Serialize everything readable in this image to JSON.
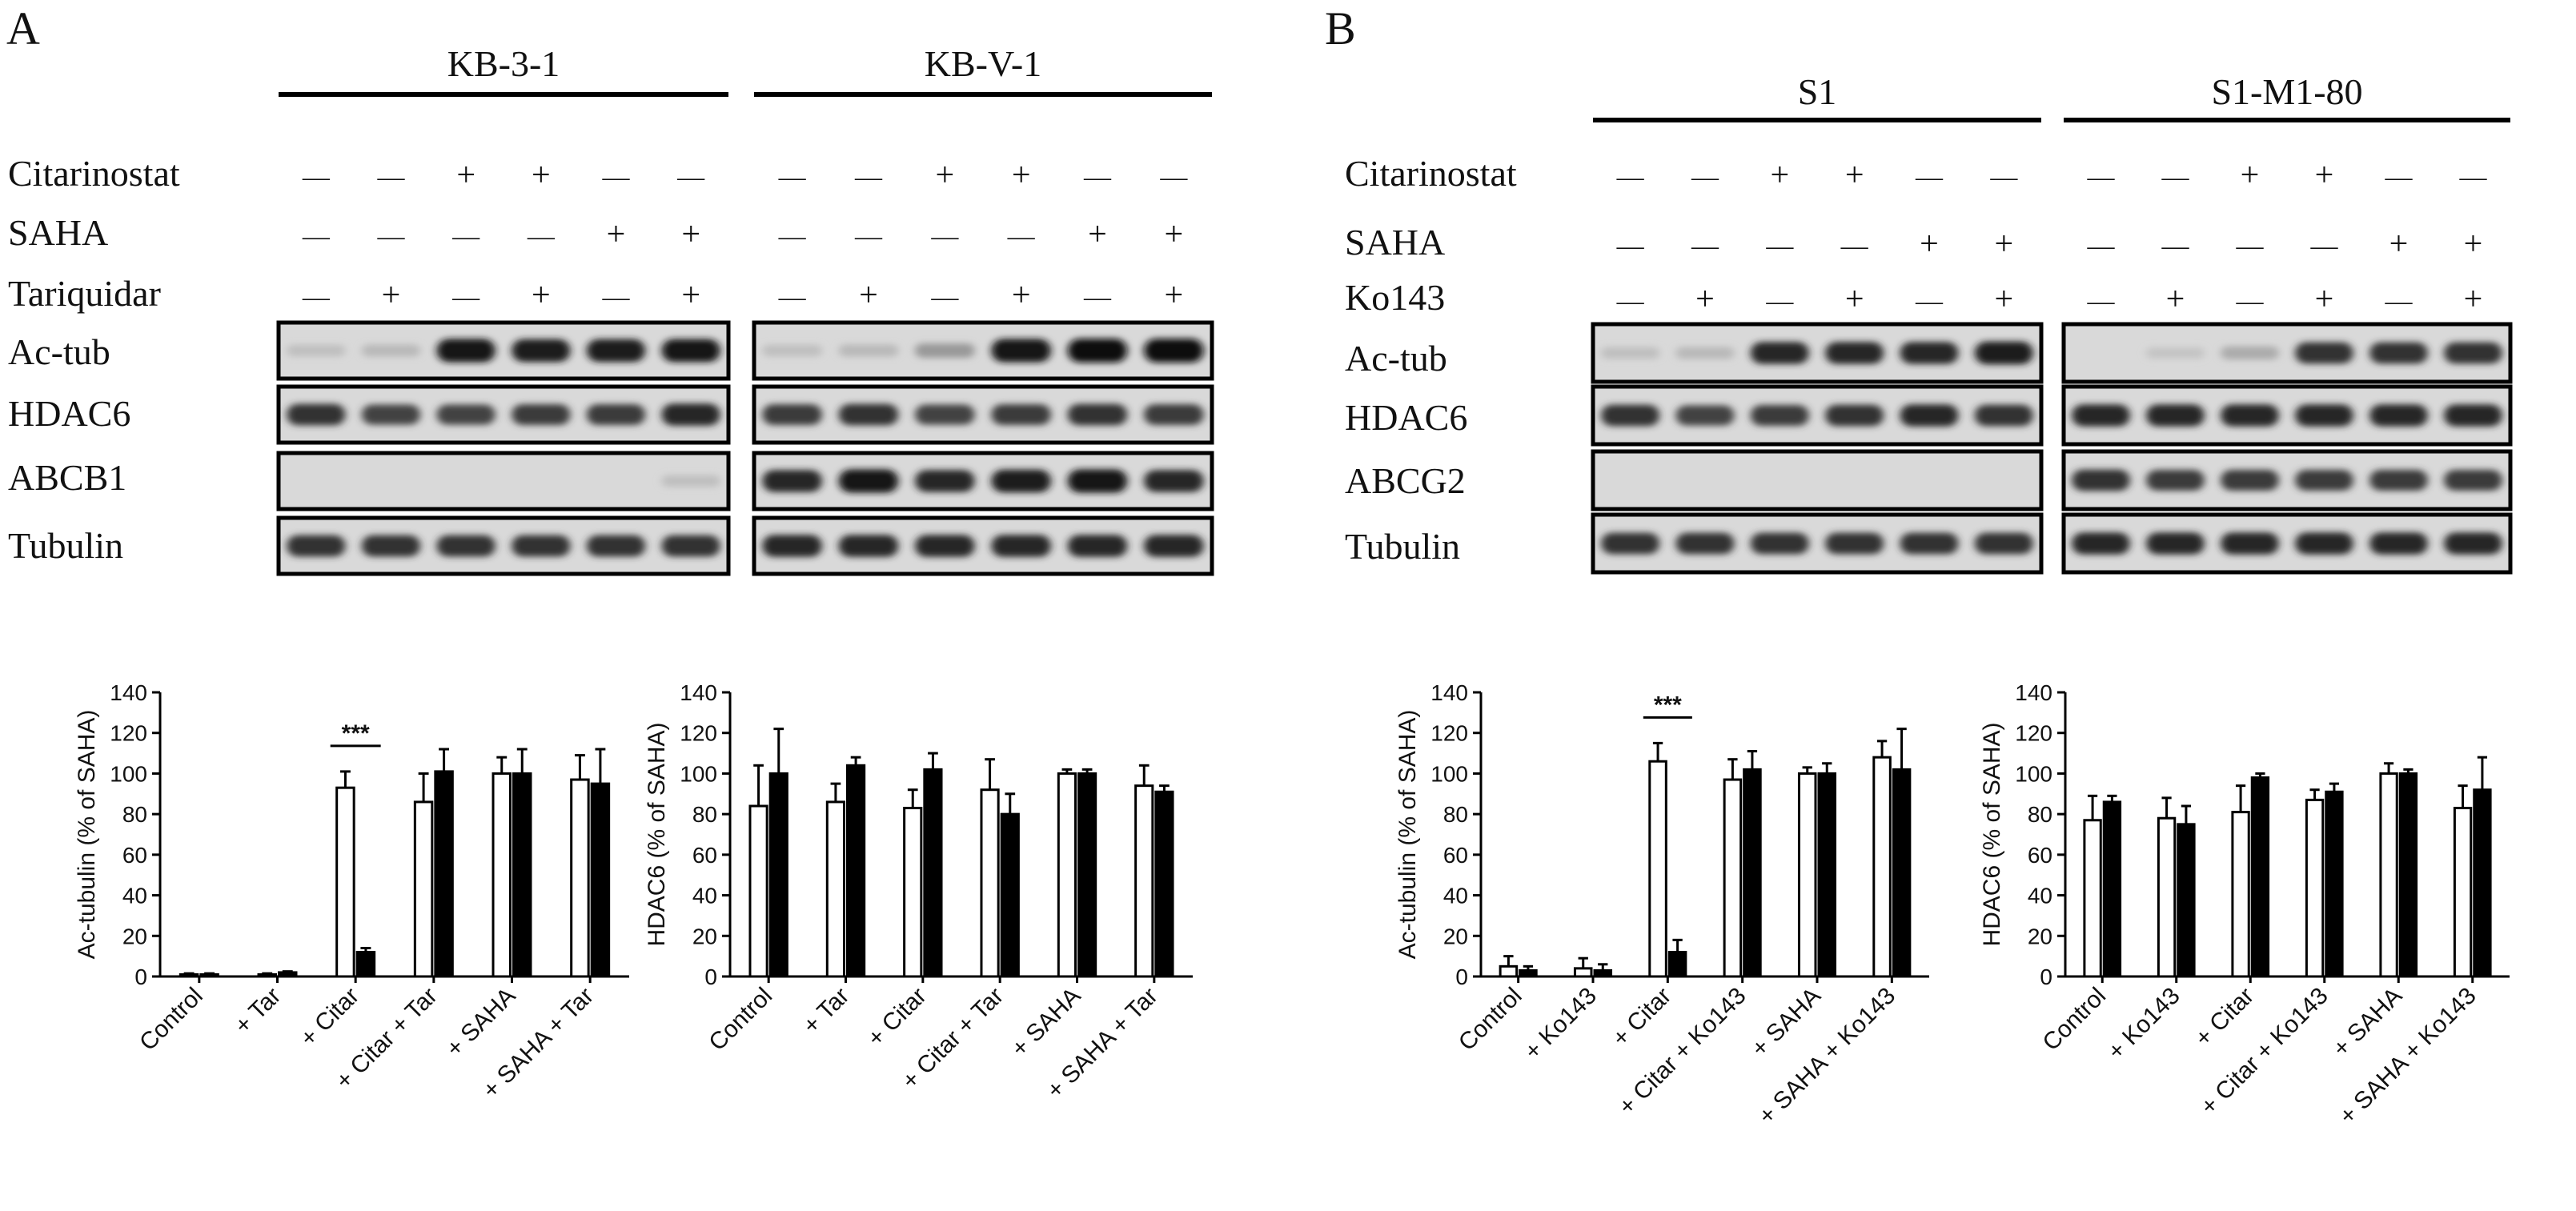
{
  "panels": [
    {
      "letter": "A",
      "cell_lines": [
        "KB-3-1",
        "KB-V-1"
      ],
      "treatment_rows": [
        {
          "label": "Citarinostat",
          "signs": [
            "—",
            "—",
            "+",
            "+",
            "—",
            "—"
          ]
        },
        {
          "label": "SAHA",
          "signs": [
            "—",
            "—",
            "—",
            "—",
            "+",
            "+"
          ]
        },
        {
          "label": "Tariquidar",
          "signs": [
            "—",
            "+",
            "—",
            "+",
            "—",
            "+"
          ]
        }
      ],
      "blot_rows": [
        "Ac-tub",
        "HDAC6",
        "ABCB1",
        "Tubulin"
      ],
      "bands": [
        [
          [
            0.05,
            0.08,
            0.95,
            0.9,
            0.9,
            0.92
          ],
          [
            0.05,
            0.08,
            0.25,
            0.95,
            0.98,
            0.98
          ]
        ],
        [
          [
            0.8,
            0.7,
            0.7,
            0.75,
            0.75,
            0.85
          ],
          [
            0.75,
            0.8,
            0.7,
            0.75,
            0.8,
            0.75
          ]
        ],
        [
          [
            0,
            0,
            0,
            0,
            0,
            0.05
          ],
          [
            0.85,
            0.95,
            0.85,
            0.9,
            0.95,
            0.85
          ]
        ],
        [
          [
            0.8,
            0.8,
            0.8,
            0.8,
            0.8,
            0.8
          ],
          [
            0.85,
            0.85,
            0.85,
            0.85,
            0.85,
            0.85
          ]
        ]
      ]
    },
    {
      "letter": "B",
      "cell_lines": [
        "S1",
        "S1-M1-80"
      ],
      "treatment_rows": [
        {
          "label": "Citarinostat",
          "signs": [
            "—",
            "—",
            "+",
            "+",
            "—",
            "—"
          ]
        },
        {
          "label": "SAHA",
          "signs": [
            "—",
            "—",
            "—",
            "—",
            "+",
            "+"
          ]
        },
        {
          "label": "Ko143",
          "signs": [
            "—",
            "+",
            "—",
            "+",
            "—",
            "+"
          ]
        }
      ],
      "blot_rows": [
        "Ac-tub",
        "HDAC6",
        "ABCG2",
        "Tubulin"
      ],
      "bands": [
        [
          [
            0.05,
            0.08,
            0.85,
            0.85,
            0.85,
            0.9
          ],
          [
            0,
            0.02,
            0.15,
            0.8,
            0.8,
            0.8
          ]
        ],
        [
          [
            0.8,
            0.7,
            0.75,
            0.8,
            0.85,
            0.8
          ],
          [
            0.85,
            0.85,
            0.85,
            0.85,
            0.85,
            0.85
          ]
        ],
        [
          [
            0,
            0,
            0,
            0,
            0,
            0
          ],
          [
            0.8,
            0.75,
            0.75,
            0.75,
            0.75,
            0.75
          ]
        ],
        [
          [
            0.8,
            0.8,
            0.8,
            0.8,
            0.8,
            0.8
          ],
          [
            0.85,
            0.85,
            0.85,
            0.85,
            0.85,
            0.85
          ]
        ]
      ]
    }
  ],
  "chart_data": [
    {
      "type": "bar",
      "ylabel": "Ac-tubulin (% of SAHA)",
      "ylim": [
        0,
        140
      ],
      "yticks": [
        0,
        20,
        40,
        60,
        80,
        100,
        120,
        140
      ],
      "categories": [
        "Control",
        "+ Tar",
        "+ Citar",
        "+ Citar + Tar",
        "+ SAHA",
        "+ SAHA + Tar"
      ],
      "series": [
        {
          "values": [
            1,
            1,
            93,
            86,
            100,
            97
          ],
          "errors": [
            0.5,
            0.5,
            8,
            14,
            8,
            12
          ],
          "fill": "#ffffff"
        },
        {
          "values": [
            1,
            2,
            12,
            101,
            100,
            95
          ],
          "errors": [
            0.5,
            0.5,
            2,
            11,
            12,
            17
          ],
          "fill": "#000000"
        }
      ],
      "annotation": {
        "text": "***",
        "category_index": 2
      }
    },
    {
      "type": "bar",
      "ylabel": "HDAC6 (% of SAHA)",
      "ylim": [
        0,
        140
      ],
      "yticks": [
        0,
        20,
        40,
        60,
        80,
        100,
        120,
        140
      ],
      "categories": [
        "Control",
        "+ Tar",
        "+ Citar",
        "+ Citar + Tar",
        "+ SAHA",
        "+ SAHA + Tar"
      ],
      "series": [
        {
          "values": [
            84,
            86,
            83,
            92,
            100,
            94
          ],
          "errors": [
            20,
            9,
            9,
            15,
            2,
            10
          ],
          "fill": "#ffffff"
        },
        {
          "values": [
            100,
            104,
            102,
            80,
            100,
            91
          ],
          "errors": [
            22,
            4,
            8,
            10,
            2,
            3
          ],
          "fill": "#000000"
        }
      ]
    },
    {
      "type": "bar",
      "ylabel": "Ac-tubulin (% of SAHA)",
      "ylim": [
        0,
        140
      ],
      "yticks": [
        0,
        20,
        40,
        60,
        80,
        100,
        120,
        140
      ],
      "categories": [
        "Control",
        "+ Ko143",
        "+ Citar",
        "+ Citar + Ko143",
        "+ SAHA",
        "+ SAHA + Ko143"
      ],
      "series": [
        {
          "values": [
            5,
            4,
            106,
            97,
            100,
            108
          ],
          "errors": [
            5,
            5,
            9,
            10,
            3,
            8
          ],
          "fill": "#ffffff"
        },
        {
          "values": [
            3,
            3,
            12,
            102,
            100,
            102
          ],
          "errors": [
            2,
            3,
            6,
            9,
            5,
            20
          ],
          "fill": "#000000"
        }
      ],
      "annotation": {
        "text": "***",
        "category_index": 2
      }
    },
    {
      "type": "bar",
      "ylabel": "HDAC6 (% of SAHA)",
      "ylim": [
        0,
        140
      ],
      "yticks": [
        0,
        20,
        40,
        60,
        80,
        100,
        120,
        140
      ],
      "categories": [
        "Control",
        "+ Ko143",
        "+ Citar",
        "+ Citar + Ko143",
        "+ SAHA",
        "+ SAHA + Ko143"
      ],
      "series": [
        {
          "values": [
            77,
            78,
            81,
            87,
            100,
            83
          ],
          "errors": [
            12,
            10,
            13,
            5,
            5,
            11
          ],
          "fill": "#ffffff"
        },
        {
          "values": [
            86,
            75,
            98,
            91,
            100,
            92
          ],
          "errors": [
            3,
            9,
            2,
            4,
            2,
            16
          ],
          "fill": "#000000"
        }
      ]
    }
  ]
}
